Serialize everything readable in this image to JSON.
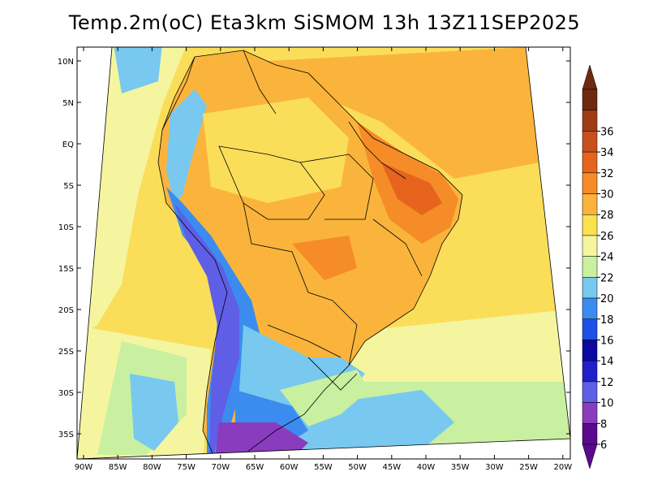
{
  "title": "Temp.2m(oC) Eta3km SiSMOM 13h 13Z11SEP2025",
  "lat_labels": [
    "10N",
    "5N",
    "EQ",
    "5S",
    "10S",
    "15S",
    "20S",
    "25S",
    "30S",
    "35S"
  ],
  "lon_labels": [
    "90W",
    "85W",
    "80W",
    "75W",
    "70W",
    "65W",
    "60W",
    "55W",
    "50W",
    "45W",
    "40W",
    "35W",
    "30W",
    "25W",
    "20W"
  ],
  "colorbar": {
    "labels": [
      "6",
      "8",
      "10",
      "12",
      "14",
      "16",
      "18",
      "20",
      "22",
      "24",
      "26",
      "28",
      "30",
      "32",
      "34",
      "36"
    ],
    "colors": [
      "#5a0a8c",
      "#8a3cbe",
      "#5e5ee6",
      "#2020c8",
      "#0a0aa0",
      "#1e50e6",
      "#3c8cf0",
      "#78c8f0",
      "#c8f0a0",
      "#f5f5a0",
      "#fae150",
      "#fab43c",
      "#f58c28",
      "#e6641e",
      "#c8501e",
      "#a03c14",
      "#6e2a10"
    ],
    "below_color": "#5a0a8c",
    "above_color": "#6e2a10"
  },
  "field_colors": {
    "ocean_warm": "#fade5a",
    "ocean_cool": "#f5f5a0",
    "land_hot": "#fab43c",
    "land_very_hot": "#f58c28",
    "andes_cold": "#5e5ee6",
    "south_cool": "#78c8f0",
    "patagonia": "#8a3cbe"
  }
}
